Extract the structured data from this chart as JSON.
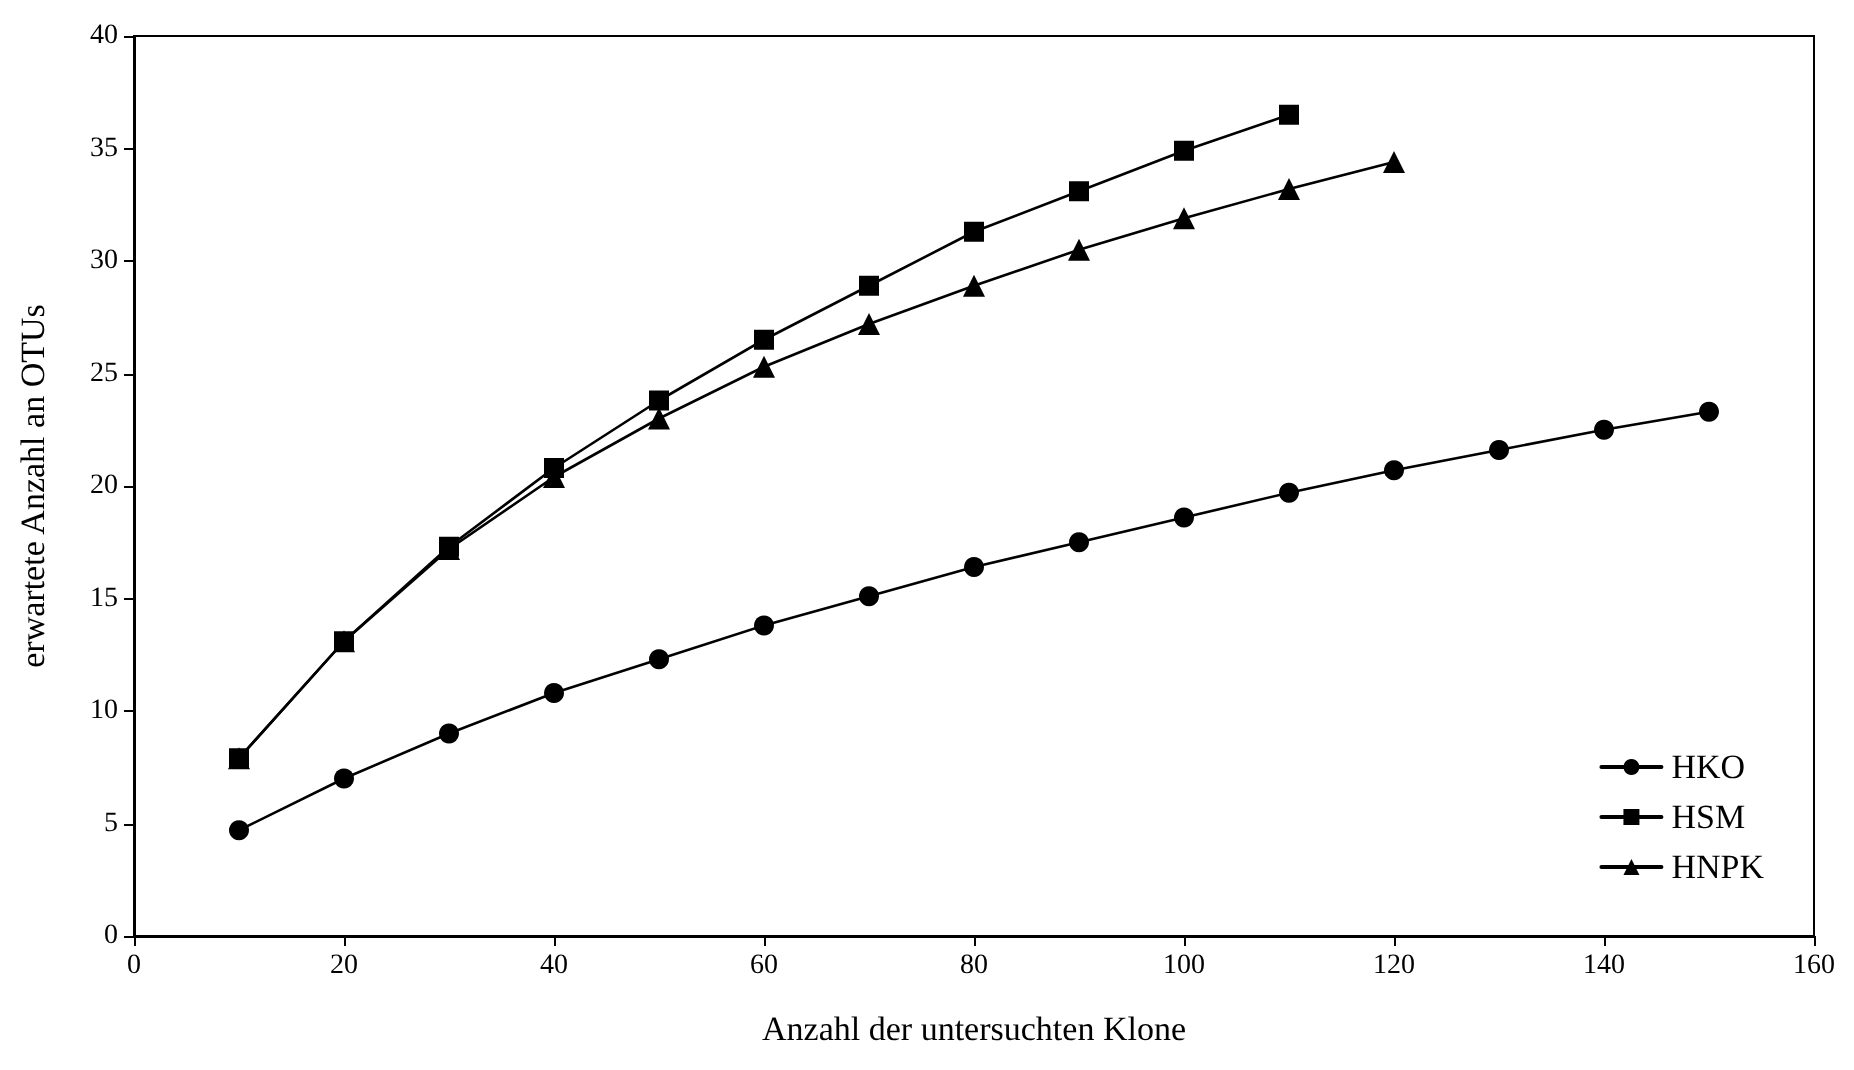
{
  "chart_data": {
    "type": "line",
    "xlabel": "Anzahl der untersuchten Klone",
    "ylabel": "erwartete Anzahl an OTUs",
    "xlim": [
      0,
      160
    ],
    "xticks": [
      0,
      20,
      40,
      60,
      80,
      100,
      120,
      140,
      160
    ],
    "ylim": [
      0,
      40
    ],
    "yticks": [
      0,
      5,
      10,
      15,
      20,
      25,
      30,
      35,
      40
    ],
    "grid": false,
    "legend": "bottom right",
    "line_style": "solid",
    "series": [
      {
        "name": "HKO",
        "color": "#000000",
        "marker": "circle",
        "x": [
          10,
          20,
          30,
          40,
          50,
          60,
          70,
          80,
          90,
          100,
          110,
          120,
          130,
          140,
          150
        ],
        "values": [
          4.7,
          7.0,
          9.0,
          10.8,
          12.3,
          13.8,
          15.1,
          16.4,
          17.5,
          18.6,
          19.7,
          20.7,
          21.6,
          22.5,
          23.3
        ]
      },
      {
        "name": "HSM",
        "color": "#000000",
        "marker": "square",
        "x": [
          10,
          20,
          30,
          40,
          50,
          60,
          70,
          80,
          90,
          100,
          110
        ],
        "values": [
          7.9,
          13.1,
          17.3,
          20.8,
          23.8,
          26.5,
          28.9,
          31.3,
          33.1,
          34.9,
          36.5
        ]
      },
      {
        "name": "HNPK",
        "color": "#000000",
        "marker": "triangle",
        "x": [
          10,
          20,
          30,
          40,
          50,
          60,
          70,
          80,
          90,
          100,
          110,
          120
        ],
        "values": [
          7.9,
          13.1,
          17.2,
          20.4,
          23.0,
          25.3,
          27.2,
          28.9,
          30.5,
          31.9,
          33.2,
          34.4
        ]
      }
    ]
  }
}
